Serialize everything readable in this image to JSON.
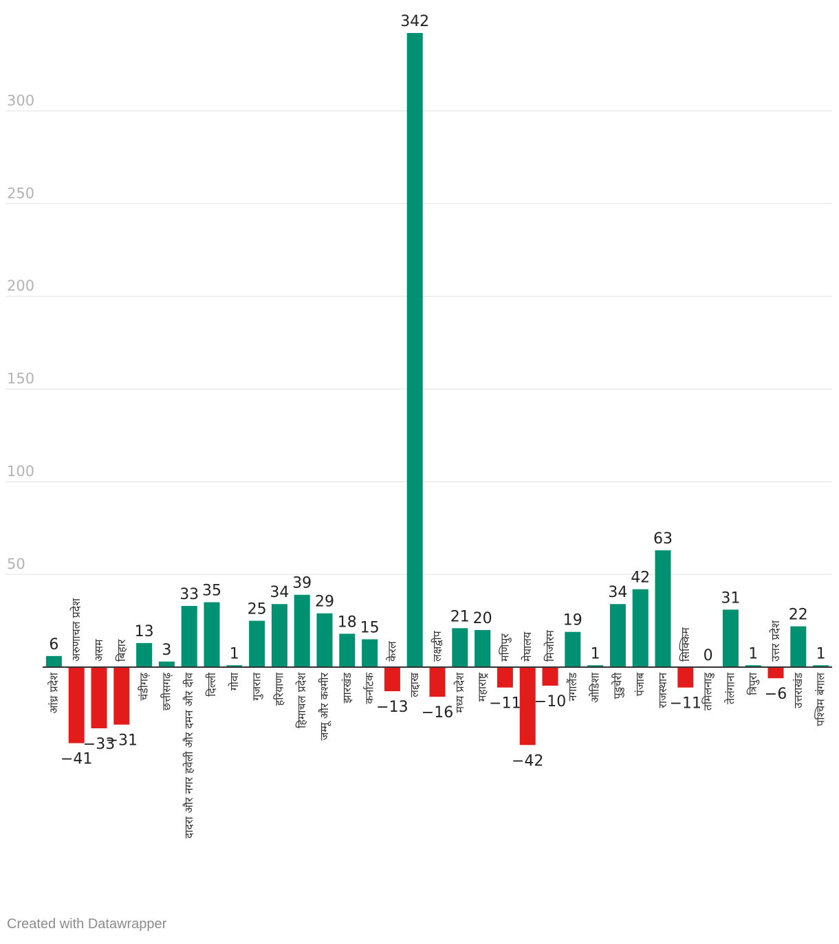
{
  "chart_data": {
    "type": "bar",
    "title": "",
    "xlabel": "",
    "ylabel": "",
    "ylim": [
      -42,
      342
    ],
    "yticks": [
      50,
      100,
      150,
      200,
      250,
      300
    ],
    "grid": true,
    "positive_color": "#009172",
    "negative_color": "#e21b1b",
    "categories": [
      "आंध्र प्रदेश",
      "अरुणाचल प्रदेश",
      "असम",
      "बिहार",
      "चंडीगढ़",
      "छत्तीसगढ़",
      "दादरा और नगर हवेली और दमन और दीव",
      "दिल्ली",
      "गोवा",
      "गुजरात",
      "हरियाणा",
      "हिमाचल प्रदेश",
      "जम्मू और कश्मीर",
      "झारखंड",
      "कर्नाटक",
      "केरल",
      "लद्दाख",
      "लक्षद्वीप",
      "मध्य प्रदेश",
      "महाराष्ट्र",
      "मणिपुर",
      "मेघालय",
      "मिजोरम",
      "नगालैंड",
      "ओडिशा",
      "पुडुचेरी",
      "पंजाब",
      "राजस्थान",
      "सिक्किम",
      "तमिलनाडु",
      "तेलंगाना",
      "त्रिपुरा",
      "उत्तर प्रदेश",
      "उत्तराखंड",
      "पश्चिम बंगाल"
    ],
    "values": [
      6,
      -41,
      -33,
      -31,
      13,
      3,
      33,
      35,
      1,
      25,
      34,
      39,
      29,
      18,
      15,
      -13,
      342,
      -16,
      21,
      20,
      -11,
      -42,
      -10,
      19,
      1,
      34,
      42,
      63,
      -11,
      0,
      31,
      1,
      -6,
      22,
      1
    ]
  },
  "footer": "Created with Datawrapper"
}
